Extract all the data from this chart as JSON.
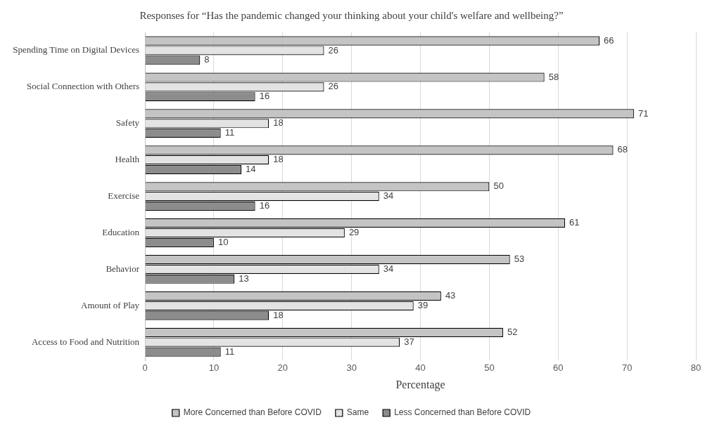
{
  "chart_data": {
    "type": "bar",
    "orientation": "horizontal",
    "title": "Responses for “Has the pandemic changed your thinking about your child's welfare and wellbeing?”",
    "xlabel": "Percentage",
    "categories": [
      "Spending Time on Digital Devices",
      "Social Connection with Others",
      "Safety",
      "Health",
      "Exercise",
      "Education",
      "Behavior",
      "Amount of Play",
      "Access to Food and Nutrition"
    ],
    "series": [
      {
        "name": "More Concerned than Before COVID",
        "color": "#c4c4c4",
        "values": [
          66,
          58,
          71,
          68,
          50,
          61,
          53,
          43,
          52
        ]
      },
      {
        "name": "Same",
        "color": "#e3e3e3",
        "values": [
          26,
          26,
          18,
          18,
          34,
          29,
          34,
          39,
          37
        ]
      },
      {
        "name": "Less Concerned than Before COVID",
        "color": "#8c8c8c",
        "values": [
          8,
          16,
          11,
          14,
          16,
          10,
          13,
          18,
          11
        ]
      }
    ],
    "xlim": [
      0,
      80
    ],
    "xticks": [
      0,
      10,
      20,
      30,
      40,
      50,
      60,
      70,
      80
    ],
    "grid": "x",
    "legend": "bottom",
    "data_labels": true
  }
}
